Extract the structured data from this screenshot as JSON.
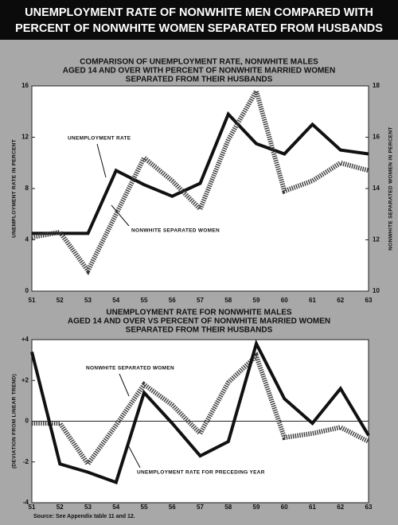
{
  "title": [
    "UNEMPLOYMENT RATE OF NONWHITE MEN COMPARED WITH",
    "PERCENT OF NONWHITE WOMEN SEPARATED FROM HUSBANDS"
  ],
  "chart_data": [
    {
      "type": "line",
      "title": [
        "COMPARISON OF UNEMPLOYMENT RATE, NONWHITE MALES",
        "AGED 14 AND OVER WITH PERCENT OF NONWHITE MARRIED WOMEN",
        "SEPARATED FROM THEIR HUSBANDS"
      ],
      "categories": [
        "51",
        "52",
        "53",
        "54",
        "55",
        "56",
        "57",
        "58",
        "59",
        "60",
        "61",
        "62",
        "63"
      ],
      "ylabel": "UNEMPLOYMENT RATE IN PERCENT",
      "y2label": "NONWHITE SEPARATED WOMEN IN PERCENT",
      "ylim": [
        0,
        16
      ],
      "yticks": [
        0,
        4,
        8,
        12,
        16
      ],
      "y2lim": [
        10,
        18
      ],
      "y2ticks": [
        10,
        12,
        14,
        16,
        18
      ],
      "series": [
        {
          "name": "UNEMPLOYMENT RATE",
          "color": "#111111",
          "line_style": "solid",
          "values": [
            4.5,
            4.5,
            4.5,
            9.4,
            8.3,
            7.4,
            8.4,
            13.8,
            11.5,
            10.7,
            13.0,
            11.0,
            10.7
          ]
        },
        {
          "name": "NONWHITE SEPARATED WOMEN",
          "color": "#3a3a3a",
          "line_style": "hatched",
          "axis": "y2",
          "values": [
            12.1,
            12.3,
            10.8,
            13.0,
            15.2,
            14.3,
            13.2,
            15.9,
            17.8,
            13.9,
            14.3,
            15.0,
            14.7
          ]
        }
      ]
    },
    {
      "type": "line",
      "title": [
        "UNEMPLOYMENT RATE FOR NONWHITE MALES",
        "AGED 14 AND OVER VS  PERCENT OF NONWHITE MARRIED WOMEN",
        "SEPARATED FROM THEIR HUSBANDS"
      ],
      "categories": [
        "51",
        "52",
        "53",
        "54",
        "55",
        "56",
        "57",
        "58",
        "59",
        "60",
        "61",
        "62",
        "63"
      ],
      "ylabel": "(DEVIATION FROM LINEAR TREND)",
      "ylim": [
        -4,
        4
      ],
      "yticks": [
        {
          "value": 4,
          "label": "+4"
        },
        {
          "value": 2,
          "label": "+2"
        },
        0,
        -2,
        -4
      ],
      "zero_line": true,
      "series": [
        {
          "name": "NONWHITE SEPARATED WOMEN",
          "color": "#3a3a3a",
          "line_style": "hatched",
          "values": [
            -0.1,
            -0.1,
            -2.1,
            -0.2,
            1.8,
            0.8,
            -0.6,
            1.9,
            3.2,
            -0.8,
            -0.6,
            -0.3,
            -1.0
          ]
        },
        {
          "name": "UNEMPLOYMENT RATE FOR PRECEDING YEAR",
          "color": "#111111",
          "line_style": "solid",
          "values": [
            3.4,
            -2.1,
            -2.5,
            -3.0,
            1.4,
            -0.1,
            -1.7,
            -1.0,
            3.8,
            1.1,
            -0.1,
            1.6,
            -0.7
          ]
        }
      ]
    }
  ],
  "source": "Source:  See Appendix table 11 and 12."
}
